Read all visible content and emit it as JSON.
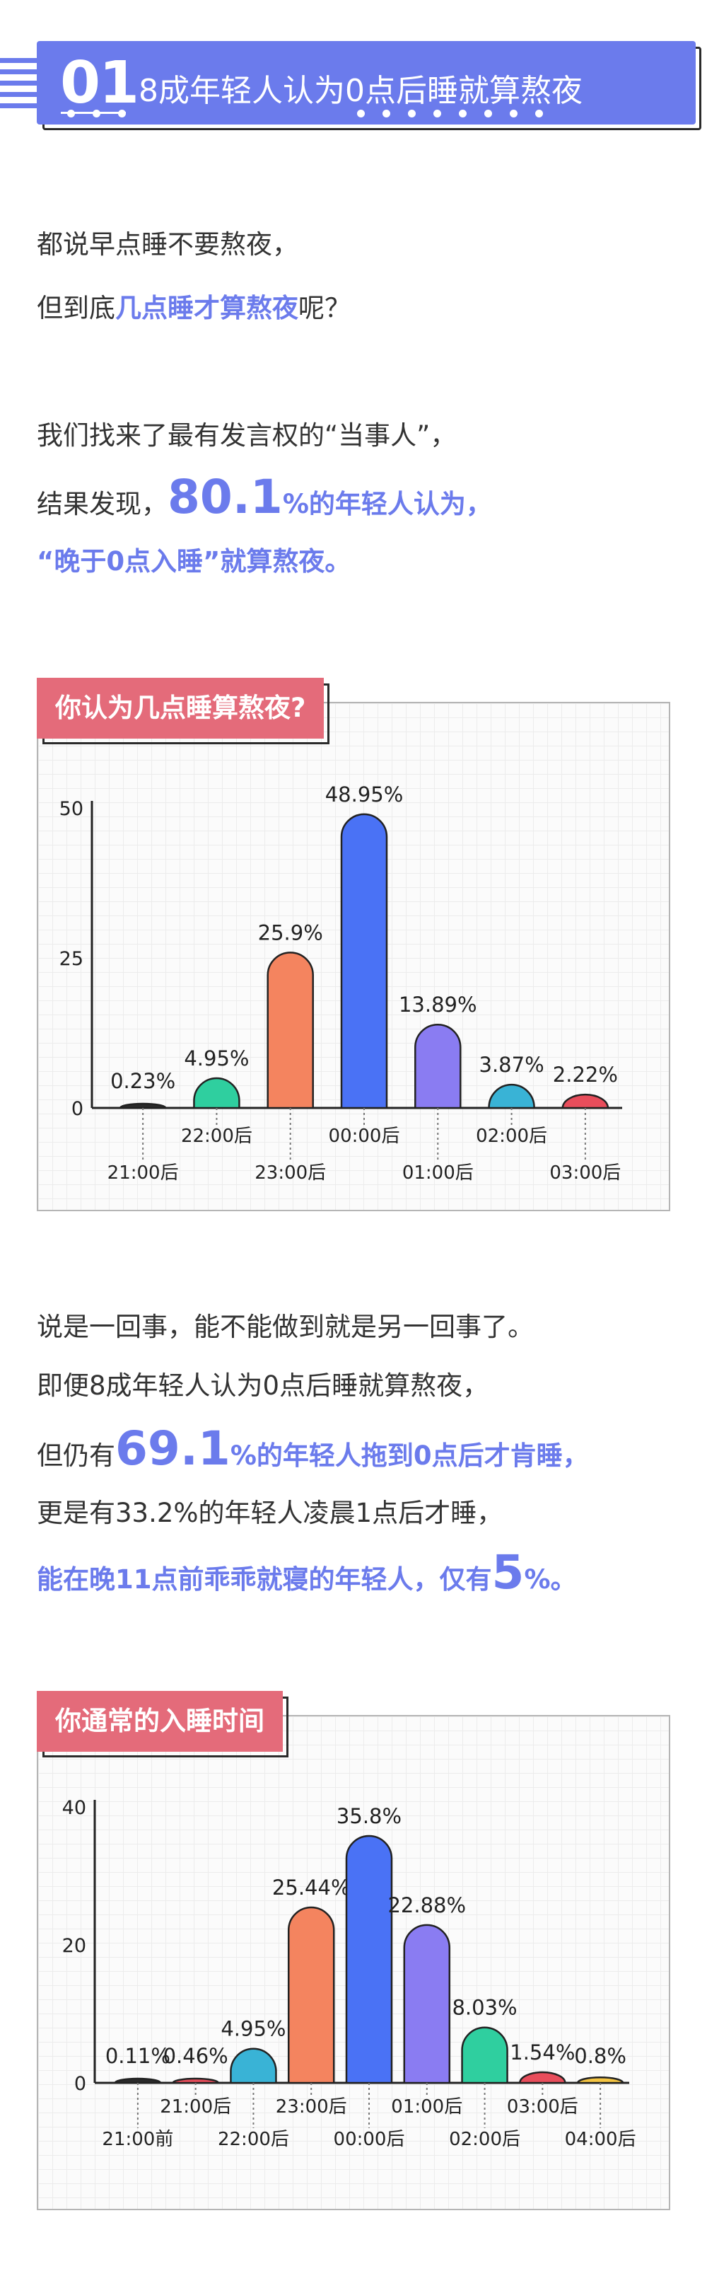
{
  "header": {
    "number": "01",
    "title": "8成年轻人认为0点后睡就算熬夜"
  },
  "intro": {
    "line1": "都说早点睡不要熬夜，",
    "line2_pre": "但到底",
    "line2_hl": "几点睡才算熬夜",
    "line2_post": "呢？",
    "line3": "我们找来了最有发言权的“当事人”，",
    "line4_pre": "结果发现，",
    "line4_big": "80.1",
    "line4_hl": "%的年轻人认为，",
    "line5_hl": "“晚于0点入睡”就算熬夜。"
  },
  "middle": {
    "line1": "说是一回事，能不能做到就是另一回事了。",
    "line2": "即便8成年轻人认为0点后睡就算熬夜，",
    "line3_pre": "但仍有",
    "line3_big": "69.1",
    "line3_hl": "%的年轻人拖到0点后才肯睡，",
    "line4": "更是有33.2%的年轻人凌晨1点后才睡，",
    "line5_hl": "能在晚11点前乖乖就寝的年轻人，仅有",
    "line5_big": "5",
    "line5_post": "%。"
  },
  "chart_data": [
    {
      "type": "bar",
      "tag_title": "你认为几点睡算熬夜?",
      "categories": [
        "21:00后",
        "22:00后",
        "23:00后",
        "00:00后",
        "01:00后",
        "02:00后",
        "03:00后"
      ],
      "values": [
        0.23,
        4.95,
        25.9,
        48.95,
        13.89,
        3.87,
        2.22
      ],
      "labels": [
        "0.23%",
        "4.95%",
        "25.9%",
        "48.95%",
        "13.89%",
        "3.87%",
        "2.22%"
      ],
      "yticks": [
        0,
        25,
        50
      ],
      "ylim": [
        0,
        50
      ],
      "colors": [
        "#2b2b2b",
        "#2fcf9f",
        "#f4845f",
        "#4a72f5",
        "#8a7cf2",
        "#39b3d6",
        "#e84d5b"
      ]
    },
    {
      "type": "bar",
      "tag_title": "你通常的入睡时间",
      "categories": [
        "21:00前",
        "21:00后",
        "22:00后",
        "23:00后",
        "00:00后",
        "01:00后",
        "02:00后",
        "03:00后",
        "04:00后"
      ],
      "values": [
        0.11,
        0.46,
        4.95,
        25.44,
        35.8,
        22.88,
        8.03,
        1.54,
        0.8
      ],
      "labels": [
        "0.11%",
        "0.46%",
        "4.95%",
        "25.44%",
        "35.8%",
        "22.88%",
        "8.03%",
        "1.54%",
        "0.8%"
      ],
      "yticks": [
        0,
        20,
        40
      ],
      "ylim": [
        0,
        40
      ],
      "colors": [
        "#2b2b2b",
        "#e84d5b",
        "#39b3d6",
        "#f4845f",
        "#4a72f5",
        "#8a7cf2",
        "#2fcf9f",
        "#e84d5b",
        "#f5c542"
      ]
    }
  ]
}
